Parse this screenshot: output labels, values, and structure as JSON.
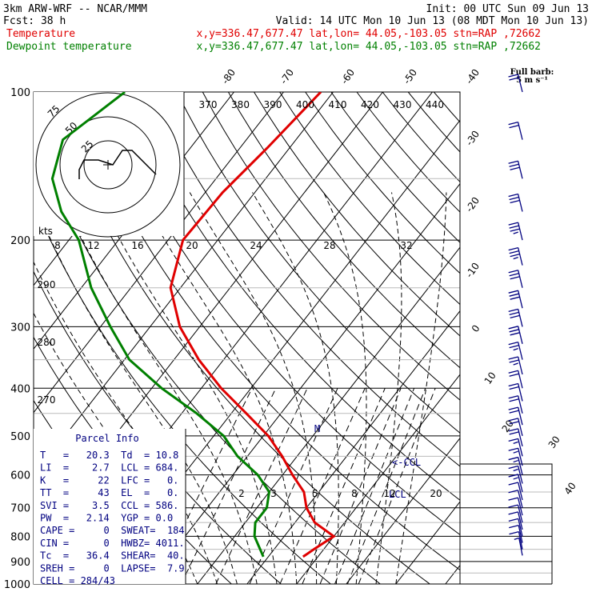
{
  "header": {
    "line1_left": "3km ARW-WRF -- NCAR/MMM",
    "line1_right": "Init: 00 UTC Sun 09 Jun 13",
    "line2_left": "Fcst:    38 h",
    "line2_right": "Valid: 14 UTC Mon 10 Jun 13 (08 MDT Mon 10 Jun 13)",
    "line3_left": "Temperature",
    "line3_right": "x,y=336.47,677.47   lat,lon= 44.05,-103.05  stn=RAP ,72662",
    "line4_left": "Dewpoint temperature",
    "line4_right": "x,y=336.47,677.47   lat,lon= 44.05,-103.05  stn=RAP ,72662",
    "full_barb": "Full barb:",
    "full_barb_unit": "5 m s⁻¹"
  },
  "colors": {
    "temperature": "#e00000",
    "dewpoint": "#008000",
    "wind": "#000080",
    "hodograph": "#000000"
  },
  "chart_data": {
    "type": "line",
    "title": "",
    "ylabel": "",
    "xlabel": "",
    "y_scale": "log-pressure",
    "ylim": [
      1000,
      100
    ],
    "pressure_ticks": [
      100,
      200,
      300,
      400,
      500,
      600,
      700,
      800,
      900,
      1000
    ],
    "isotherm_labels": [
      -80,
      -70,
      -60,
      -50,
      -40,
      -30,
      -20,
      -10,
      0,
      10,
      20,
      30,
      40
    ],
    "theta_labels": [
      370,
      380,
      390,
      400,
      410,
      420,
      430,
      440
    ],
    "theta_side_labels": [
      290,
      280,
      270
    ],
    "mixing_ratio_labels_upper": [
      8,
      12,
      16,
      20,
      24,
      28,
      32
    ],
    "mixing_ratio_labels_lower": [
      2,
      3,
      5,
      8,
      12,
      20
    ],
    "series": [
      {
        "name": "Temperature",
        "points": [
          [
            100,
            -52.5
          ],
          [
            130,
            -54.5
          ],
          [
            160,
            -56.5
          ],
          [
            200,
            -57
          ],
          [
            250,
            -52
          ],
          [
            300,
            -44
          ],
          [
            350,
            -35
          ],
          [
            400,
            -26
          ],
          [
            450,
            -17
          ],
          [
            500,
            -9
          ],
          [
            550,
            -3
          ],
          [
            600,
            2
          ],
          [
            650,
            7
          ],
          [
            700,
            10
          ],
          [
            750,
            14
          ],
          [
            800,
            20
          ],
          [
            850,
            18
          ],
          [
            880,
            17
          ]
        ]
      },
      {
        "name": "Dewpoint temperature",
        "points": [
          [
            100,
            -92
          ],
          [
            125,
            -97
          ],
          [
            150,
            -93
          ],
          [
            175,
            -86
          ],
          [
            200,
            -78
          ],
          [
            250,
            -68
          ],
          [
            300,
            -58
          ],
          [
            350,
            -49
          ],
          [
            400,
            -38
          ],
          [
            450,
            -27
          ],
          [
            500,
            -18
          ],
          [
            550,
            -12
          ],
          [
            600,
            -5
          ],
          [
            650,
            0
          ],
          [
            700,
            2
          ],
          [
            750,
            2
          ],
          [
            800,
            4
          ],
          [
            880,
            9
          ]
        ]
      }
    ],
    "wind_barbs": [
      {
        "p": 100,
        "speed_ms": 10,
        "dir_deg": 275
      },
      {
        "p": 125,
        "speed_ms": 12,
        "dir_deg": 280
      },
      {
        "p": 150,
        "speed_ms": 15,
        "dir_deg": 280
      },
      {
        "p": 175,
        "speed_ms": 17,
        "dir_deg": 282
      },
      {
        "p": 200,
        "speed_ms": 18,
        "dir_deg": 285
      },
      {
        "p": 225,
        "speed_ms": 18,
        "dir_deg": 285
      },
      {
        "p": 250,
        "speed_ms": 17,
        "dir_deg": 285
      },
      {
        "p": 275,
        "speed_ms": 17,
        "dir_deg": 285
      },
      {
        "p": 300,
        "speed_ms": 16,
        "dir_deg": 285
      },
      {
        "p": 325,
        "speed_ms": 15,
        "dir_deg": 285
      },
      {
        "p": 350,
        "speed_ms": 14,
        "dir_deg": 285
      },
      {
        "p": 375,
        "speed_ms": 13,
        "dir_deg": 285
      },
      {
        "p": 400,
        "speed_ms": 12,
        "dir_deg": 285
      },
      {
        "p": 425,
        "speed_ms": 12,
        "dir_deg": 285
      },
      {
        "p": 450,
        "speed_ms": 11,
        "dir_deg": 285
      },
      {
        "p": 475,
        "speed_ms": 10,
        "dir_deg": 285
      },
      {
        "p": 500,
        "speed_ms": 10,
        "dir_deg": 285
      },
      {
        "p": 525,
        "speed_ms": 10,
        "dir_deg": 285
      },
      {
        "p": 550,
        "speed_ms": 9,
        "dir_deg": 285
      },
      {
        "p": 575,
        "speed_ms": 9,
        "dir_deg": 285
      },
      {
        "p": 600,
        "speed_ms": 9,
        "dir_deg": 285
      },
      {
        "p": 625,
        "speed_ms": 8,
        "dir_deg": 285
      },
      {
        "p": 650,
        "speed_ms": 8,
        "dir_deg": 285
      },
      {
        "p": 675,
        "speed_ms": 7,
        "dir_deg": 285
      },
      {
        "p": 700,
        "speed_ms": 6,
        "dir_deg": 280
      },
      {
        "p": 725,
        "speed_ms": 5,
        "dir_deg": 275
      },
      {
        "p": 750,
        "speed_ms": 5,
        "dir_deg": 270
      },
      {
        "p": 775,
        "speed_ms": 5,
        "dir_deg": 260
      },
      {
        "p": 800,
        "speed_ms": 6,
        "dir_deg": 250
      },
      {
        "p": 825,
        "speed_ms": 6,
        "dir_deg": 240
      },
      {
        "p": 850,
        "speed_ms": 5,
        "dir_deg": 235
      },
      {
        "p": 875,
        "speed_ms": 4,
        "dir_deg": 230
      }
    ],
    "annotations": {
      "lcl_marker": "<-CCL",
      "lcl_label": "LCL",
      "lcl_pressure": 684,
      "ccl_pressure": 586
    },
    "hodograph": {
      "ring_labels": [
        "25",
        "50",
        "75"
      ],
      "kts_label": "kts",
      "trace_kt": [
        [
          -12,
          -6
        ],
        [
          -12,
          -2
        ],
        [
          -10,
          2
        ],
        [
          -4,
          2
        ],
        [
          2,
          0
        ],
        [
          6,
          6
        ],
        [
          10,
          6
        ],
        [
          20,
          -4
        ]
      ]
    }
  },
  "parcel_info": {
    "title": "Parcel Info",
    "rows": [
      "T   =   20.3  Td  = 10.8",
      "LI  =    2.7  LCL = 684.",
      "K   =     22  LFC =   0.",
      "TT  =     43  EL  =   0.",
      "SVI =    3.5  CCL = 586.",
      "PW  =   2.14  YGP = 0.0",
      "CAPE =     0  SWEAT=  184",
      "CIN =      0  HWBZ= 4011.",
      "Tc  =   36.4  SHEAR=  40.",
      "SREH =     0  LAPSE=  7.9",
      "CELL = 284/43"
    ]
  }
}
